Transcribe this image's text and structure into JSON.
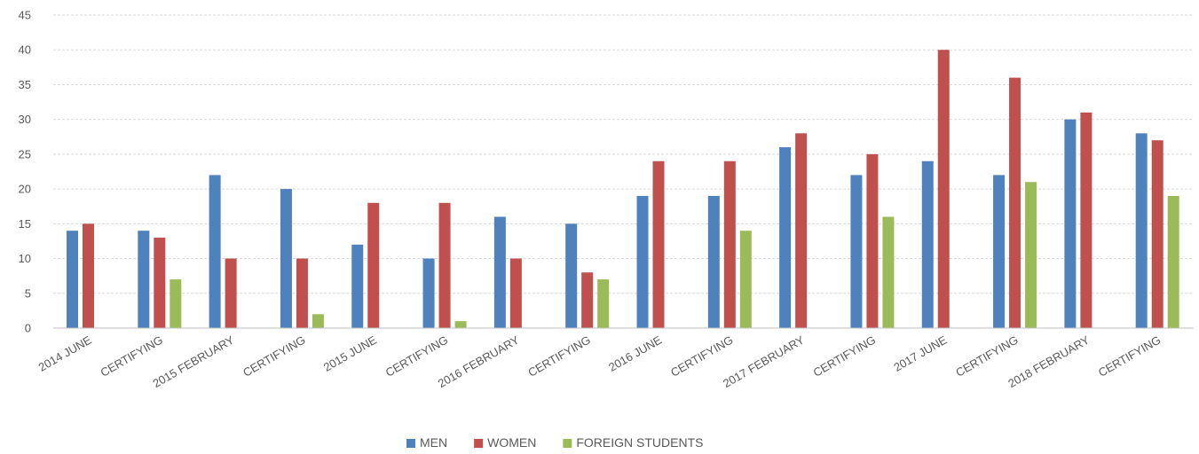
{
  "chart_data": {
    "type": "bar",
    "categories": [
      "2014 JUNE",
      "CERTIFYING",
      "2015 FEBRUARY",
      "CERTIFYING",
      "2015 JUNE",
      "CERTIFYING",
      "2016 FEBRUARY",
      "CERTIFYING",
      "2016 JUNE",
      "CERTIFYING",
      "2017 FEBRUARY",
      "CERTIFYING",
      "2017 JUNE",
      "CERTIFYING",
      "2018 FEBRUARY",
      "CERTIFYING"
    ],
    "series": [
      {
        "name": "MEN",
        "color": "#4f81bd",
        "values": [
          14,
          14,
          22,
          20,
          12,
          10,
          16,
          15,
          19,
          19,
          26,
          22,
          24,
          22,
          30,
          28
        ]
      },
      {
        "name": "WOMEN",
        "color": "#c0504d",
        "values": [
          15,
          13,
          10,
          10,
          18,
          18,
          10,
          8,
          24,
          24,
          28,
          25,
          40,
          36,
          31,
          27
        ]
      },
      {
        "name": "FOREIGN STUDENTS",
        "color": "#9bbb59",
        "values": [
          null,
          7,
          null,
          2,
          null,
          1,
          null,
          7,
          null,
          14,
          null,
          16,
          null,
          21,
          null,
          19
        ]
      }
    ],
    "ylim": [
      0,
      45
    ],
    "yticks": [
      0,
      5,
      10,
      15,
      20,
      25,
      30,
      35,
      40,
      45
    ],
    "grid": true,
    "legend_position": "bottom-center",
    "title": "",
    "xlabel": "",
    "ylabel": ""
  }
}
